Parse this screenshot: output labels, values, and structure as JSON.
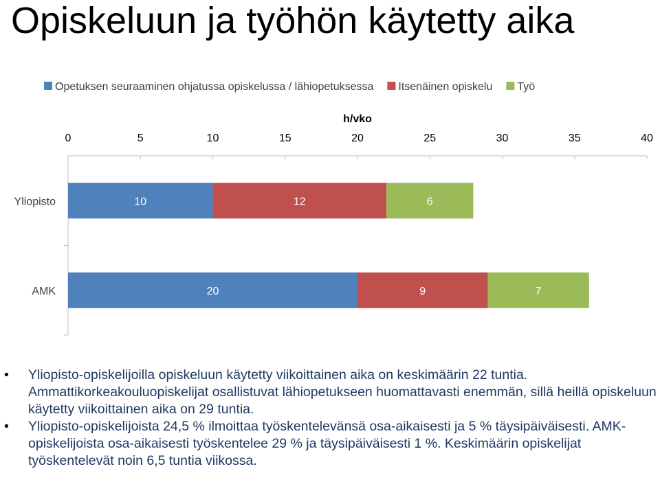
{
  "page": {
    "title": "Opiskeluun ja työhön käytetty aika"
  },
  "chart_data": {
    "type": "bar",
    "orientation": "horizontal",
    "stacked": true,
    "title": "",
    "xlabel": "h/vko",
    "ylabel": "",
    "xlim": [
      0,
      40
    ],
    "x_ticks": [
      0,
      5,
      10,
      15,
      20,
      25,
      30,
      35,
      40
    ],
    "x_axis_position": "top",
    "grid": false,
    "legend": "top",
    "categories": [
      "Yliopisto",
      "AMK"
    ],
    "series": [
      {
        "name": "Opetuksen seuraaminen ohjatussa opiskelussa / lähiopetuksessa",
        "color": "#4f81bd",
        "values": [
          10,
          20
        ]
      },
      {
        "name": "Itsenäinen opiskelu",
        "color": "#c0504d",
        "values": [
          12,
          9
        ]
      },
      {
        "name": "Työ",
        "color": "#9bbb59",
        "values": [
          6,
          7
        ]
      }
    ],
    "data_labels": [
      [
        "10",
        "12",
        "6"
      ],
      [
        "20",
        "9",
        "7"
      ]
    ]
  },
  "bullets": [
    "Yliopisto-opiskelijoilla opiskeluun käytetty viikoittainen aika on keskimäärin 22 tuntia. Ammattikorkeakouluopiskelijat osallistuvat lähiopetukseen huomattavasti enemmän, sillä heillä opiskeluun käytetty viikoittainen aika on 29 tuntia.",
    "Yliopisto-opiskelijoista 24,5 % ilmoittaa työskentelevänsä osa-aikaisesti ja 5 % täysipäiväisesti. AMK-opiskelijoista osa-aikaisesti työskentelee 29 % ja täysipäiväisesti 1 %. Keskimäärin opiskelijat työskentelevät noin 6,5 tuntia viikossa."
  ]
}
